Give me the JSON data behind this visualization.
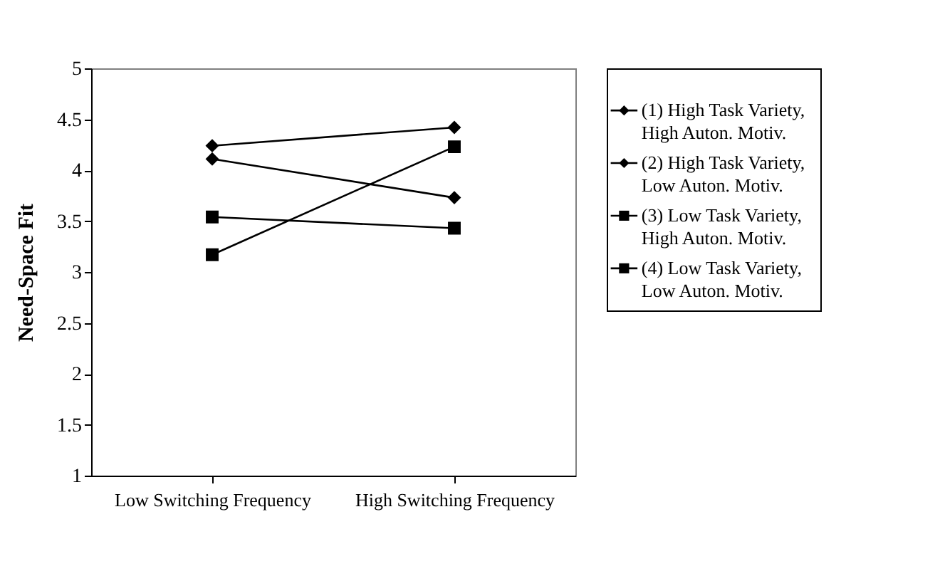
{
  "chart_data": {
    "type": "line",
    "ylabel": "Need-Space Fit",
    "categories": [
      "Low Switching Frequency",
      "High Switching Frequency"
    ],
    "ylim": [
      1,
      5
    ],
    "yticks": [
      1,
      1.5,
      2,
      2.5,
      3,
      3.5,
      4,
      4.5,
      5
    ],
    "grid": false,
    "legend": "right",
    "line_style": "solid",
    "series": [
      {
        "name": "(1) High Task Variety, High Auton. Motiv.",
        "color": "#000000",
        "marker": "diamond",
        "values": [
          4.24,
          4.42
        ]
      },
      {
        "name": "(2) High Task Variety, Low Auton. Motiv.",
        "color": "#000000",
        "marker": "diamond",
        "values": [
          4.11,
          3.73
        ]
      },
      {
        "name": "(3) Low Task Variety, High Auton. Motiv.",
        "color": "#000000",
        "marker": "square",
        "values": [
          3.54,
          3.43
        ]
      },
      {
        "name": "(4) Low Task Variety, Low Auton. Motiv.",
        "color": "#000000",
        "marker": "square",
        "values": [
          3.17,
          4.23
        ]
      }
    ]
  }
}
